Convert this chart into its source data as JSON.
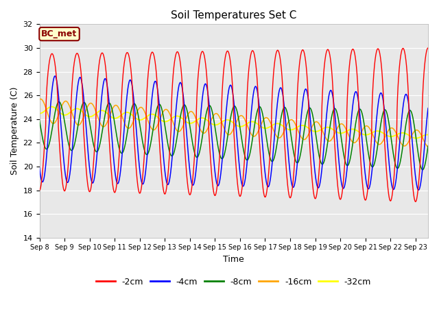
{
  "title": "Soil Temperatures Set C",
  "xlabel": "Time",
  "ylabel": "Soil Temperature (C)",
  "ylim": [
    14,
    32
  ],
  "xlim_start": 0,
  "xlim_end": 15.5,
  "xtick_labels": [
    "Sep 8",
    "Sep 9",
    "Sep 10",
    "Sep 11",
    "Sep 12",
    "Sep 13",
    "Sep 14",
    "Sep 15",
    "Sep 16",
    "Sep 17",
    "Sep 18",
    "Sep 19",
    "Sep 20",
    "Sep 21",
    "Sep 22",
    "Sep 23"
  ],
  "ytick_values": [
    14,
    16,
    18,
    20,
    22,
    24,
    26,
    28,
    30,
    32
  ],
  "legend_entries": [
    "-2cm",
    "-4cm",
    "-8cm",
    "-16cm",
    "-32cm"
  ],
  "legend_colors": [
    "red",
    "blue",
    "green",
    "orange",
    "yellow"
  ],
  "annotation_text": "BC_met",
  "bg_color": "#e8e8e8",
  "fig_color": "#ffffff"
}
